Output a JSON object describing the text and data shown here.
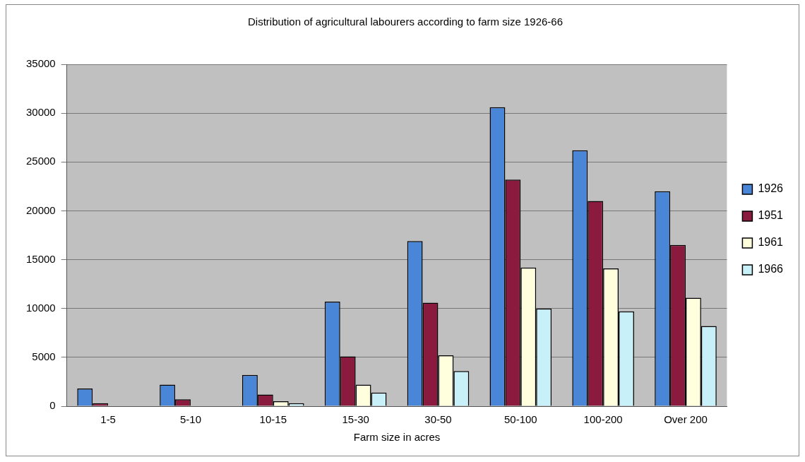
{
  "chart_data": {
    "type": "bar",
    "title": "Distribution of agricultural labourers according to farm size 1926-66",
    "xlabel": "Farm size in acres",
    "categories": [
      "1-5",
      "5-10",
      "10-15",
      "15-30",
      "30-50",
      "50-100",
      "100-200",
      "Over 200"
    ],
    "series": [
      {
        "name": "1926",
        "color": "#4a86d8",
        "values": [
          1800,
          2200,
          3200,
          10700,
          16900,
          30600,
          26200,
          22000
        ]
      },
      {
        "name": "1951",
        "color": "#8b1a3f",
        "values": [
          300,
          700,
          1200,
          5100,
          10600,
          23200,
          21000,
          16500
        ]
      },
      {
        "name": "1961",
        "color": "#ffffdd",
        "values": [
          null,
          null,
          500,
          2200,
          5200,
          14200,
          14100,
          11100
        ]
      },
      {
        "name": "1966",
        "color": "#c8f0f8",
        "values": [
          null,
          null,
          300,
          1400,
          3600,
          10000,
          9700,
          8200
        ]
      }
    ],
    "ylim": [
      0,
      35000
    ],
    "yticks": [
      0,
      5000,
      10000,
      15000,
      20000,
      25000,
      30000,
      35000
    ],
    "grid": "y",
    "legend": "right"
  }
}
